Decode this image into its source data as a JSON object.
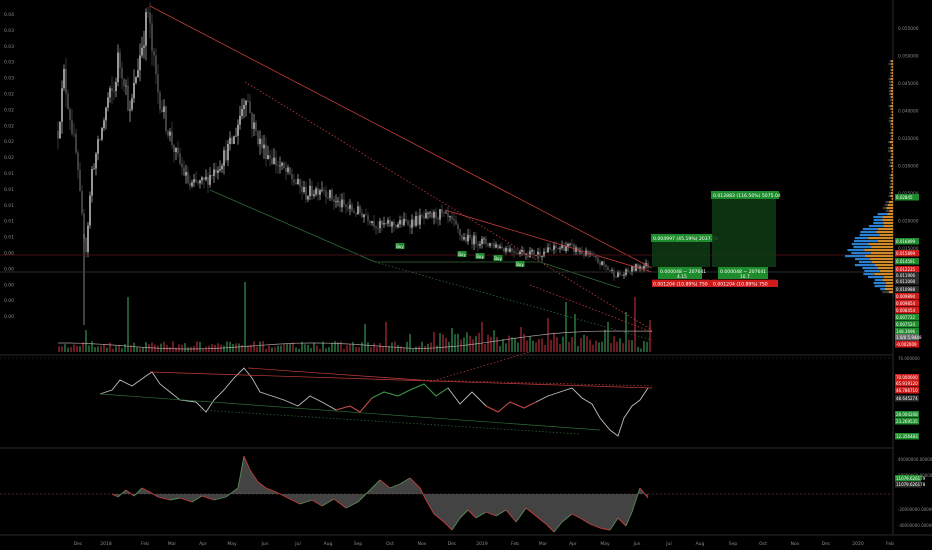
{
  "colors": {
    "background": "#000000",
    "up_candle": "#d6d6d6",
    "down_candle": "#5a5a5a",
    "up_volume": "#1f5a33",
    "down_volume": "#6b1a22",
    "trend_red": "#c43c3c",
    "trend_green": "#2f6b37",
    "rsi_line": "#bfbfbf",
    "macd_up": "#5a5a5a",
    "macd_down": "#c43c3c",
    "label_green": "#1e8c2c",
    "label_red": "#d01b1b",
    "volume_profile_blue": "#2a7fd0",
    "volume_profile_orange": "#d08a2a",
    "text": "#8a8a8a"
  },
  "main_chart": {
    "y_axis_ticks": [
      "0.055000",
      "0.050000",
      "0.045000",
      "0.040000",
      "0.035000",
      "0.030000",
      "0.025000",
      "0.020000",
      "0.015000",
      "0.010000",
      "0.005000"
    ],
    "left_ticks": [
      "0.04",
      "0.03",
      "0.03",
      "0.03",
      "0.03",
      "0.02",
      "0.02",
      "0.02",
      "0.02",
      "0.02",
      "0.01",
      "0.01",
      "0.01",
      "0.01",
      "0.01",
      "0.00",
      "0.00",
      "0.00",
      "0.00",
      "0.00"
    ],
    "price_labels": [
      {
        "text": "0.02845",
        "kind": "green"
      },
      {
        "text": "0.016899",
        "kind": "green"
      },
      {
        "text": "0.015899",
        "kind": "red"
      },
      {
        "text": "0.014591",
        "kind": "green"
      },
      {
        "text": "0.012235",
        "kind": "red"
      },
      {
        "text": "0.011906",
        "kind": "dark"
      },
      {
        "text": "0.011008",
        "kind": "dark"
      },
      {
        "text": "0.010988",
        "kind": "dark"
      },
      {
        "text": "0.009890",
        "kind": "red"
      },
      {
        "text": "0.009854",
        "kind": "red"
      },
      {
        "text": "0.008454",
        "kind": "red"
      },
      {
        "text": "0.007722",
        "kind": "green"
      },
      {
        "text": "0.007524",
        "kind": "green"
      },
      {
        "text": "148.3696",
        "kind": "green"
      },
      {
        "text": "1 0/0 5.9448",
        "kind": "gray"
      },
      {
        "text": "-0.002009",
        "kind": "red"
      }
    ],
    "buy_signals": [
      "Buy",
      "Buy",
      "Buy",
      "Buy",
      "Buy"
    ],
    "position_boxes": [
      {
        "target_label": "0.004997 (45.19%) 2037.58",
        "entry_label": "0.000048 − 207641",
        "entry_sub": "4.15",
        "stop_label": "0.001204 (10.89%) 750"
      },
      {
        "target_label": "0.012883 (116.50%) 5075.04",
        "entry_label": "0.000048 − 207641",
        "entry_sub": "10.7",
        "stop_label": "0.001204 (10.89%) 750"
      }
    ]
  },
  "rsi_panel": {
    "y_axis_ticks": [
      "70.000000",
      "-50.000000"
    ],
    "labels": [
      {
        "text": "70.000000",
        "kind": "red"
      },
      {
        "text": "65.919120",
        "kind": "red"
      },
      {
        "text": "46.786710",
        "kind": "red"
      },
      {
        "text": "48.645274",
        "kind": "dark"
      },
      {
        "text": "28.004208",
        "kind": "green"
      },
      {
        "text": "23.269535",
        "kind": "green"
      },
      {
        "text": "12.356483",
        "kind": "green"
      }
    ]
  },
  "macd_panel": {
    "y_axis_ticks": [
      "40000000.000000",
      "20000000.000000",
      "-20000000.000000",
      "-40000000.000000"
    ],
    "labels": [
      {
        "text": "11079.626179",
        "kind": "green"
      },
      {
        "text": "11079.626178",
        "kind": "dark"
      }
    ]
  },
  "x_axis": {
    "labels": [
      "Dec",
      "2018",
      "Feb",
      "Mar",
      "Apr",
      "May",
      "Jun",
      "Jul",
      "Aug",
      "Sep",
      "Oct",
      "Nov",
      "Dec",
      "2019",
      "Feb",
      "Mar",
      "Apr",
      "May",
      "Jun",
      "Jul",
      "Aug",
      "Sep",
      "Oct",
      "Nov",
      "Dec",
      "2020",
      "Feb"
    ]
  },
  "chart_data": {
    "type": "candlestick",
    "title": "",
    "xlabel": "",
    "ylabel": "",
    "ylim": [
      0.0,
      0.055
    ],
    "grid": false,
    "note_values": "approximate monthly closing prices read from the chart",
    "x": [
      "Dec",
      "2018",
      "Feb",
      "Mar",
      "Apr",
      "May",
      "Jun",
      "Jul",
      "Aug",
      "Sep",
      "Oct",
      "Nov",
      "Dec",
      "2019",
      "Feb",
      "Mar",
      "Apr",
      "May",
      "Jun"
    ],
    "series": [
      {
        "values": [
          0.036,
          0.04,
          0.048,
          0.03,
          0.022,
          0.042,
          0.032,
          0.028,
          0.024,
          0.02,
          0.02,
          0.022,
          0.016,
          0.016,
          0.014,
          0.015,
          0.014,
          0.011,
          0.012
        ]
      }
    ]
  }
}
